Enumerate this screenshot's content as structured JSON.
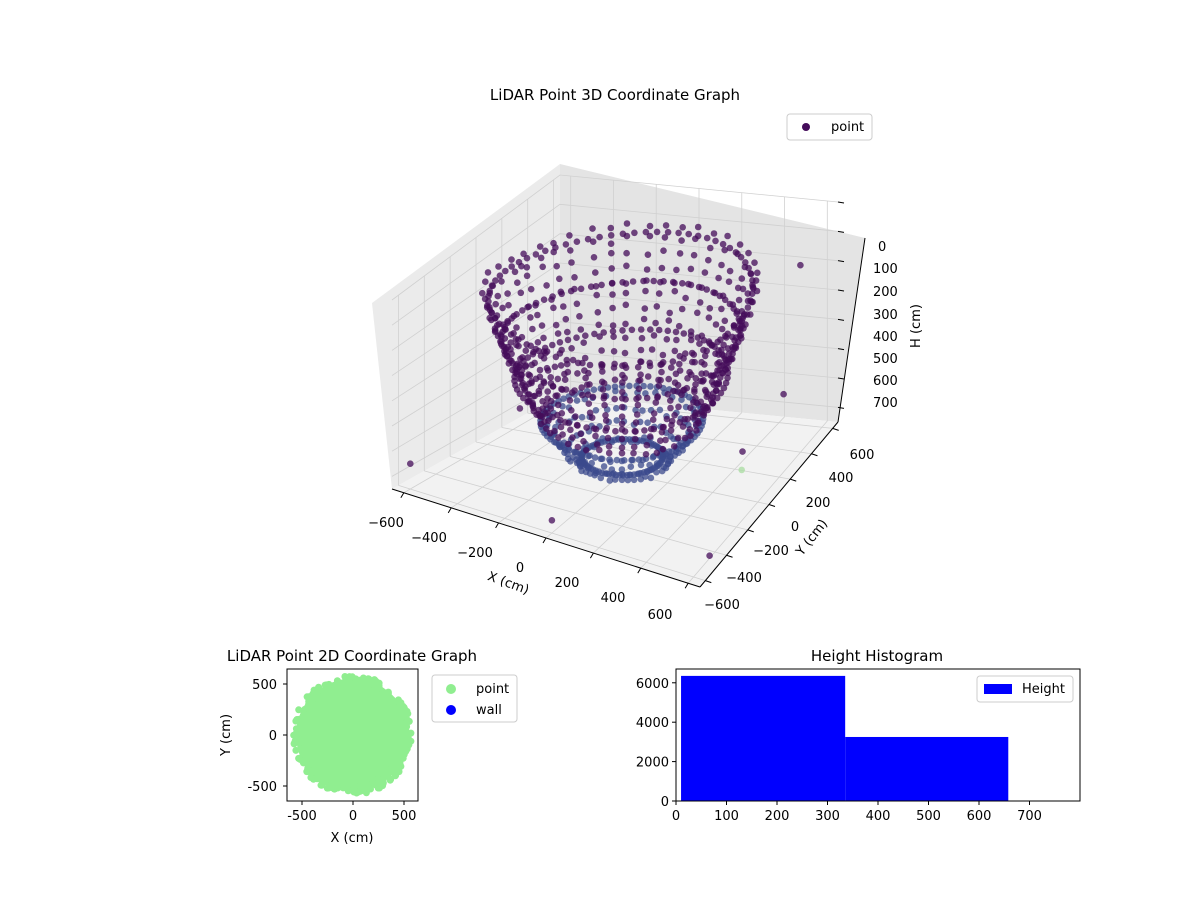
{
  "chart_data": [
    {
      "type": "scatter",
      "subtype": "3d",
      "title": "LiDAR Point 3D Coordinate Graph",
      "xlabel": "X (cm)",
      "ylabel": "Y (cm)",
      "zlabel": "H (cm)",
      "xlim": [
        -650,
        650
      ],
      "ylim": [
        -650,
        650
      ],
      "zlim": [
        750,
        0
      ],
      "x_ticks": [
        "−600",
        "−400",
        "−200",
        "0",
        "200",
        "400",
        "600"
      ],
      "y_ticks": [
        "−600",
        "−400",
        "−200",
        "0",
        "200",
        "400",
        "600"
      ],
      "z_ticks": [
        "0",
        "100",
        "200",
        "300",
        "400",
        "500",
        "600",
        "700"
      ],
      "legend": [
        "point"
      ],
      "legend_position": "top-right",
      "grid": true,
      "z_inverted": true,
      "colors": {
        "point": "#440c5a",
        "point_low": "#3b4a8c",
        "outlier_light": "#a8dca0"
      },
      "structure": {
        "rings": [
          {
            "radius": 520,
            "height": 100
          },
          {
            "radius": 470,
            "height": 250
          },
          {
            "radius": 420,
            "height": 400
          },
          {
            "radius": 320,
            "height": 560
          },
          {
            "radius": 160,
            "height": 690
          }
        ],
        "scan_lines": 44,
        "outliers": [
          {
            "x": -600,
            "y": -600,
            "h": 650
          },
          {
            "x": -620,
            "y": 300,
            "h": 200
          },
          {
            "x": 550,
            "y": 500,
            "h": 150
          },
          {
            "x": 620,
            "y": 200,
            "h": 450
          },
          {
            "x": 580,
            "y": -100,
            "h": 520
          },
          {
            "x": 0,
            "y": -600,
            "h": 700
          },
          {
            "x": 600,
            "y": -450,
            "h": 740
          },
          {
            "x": -400,
            "y": -100,
            "h": 550
          }
        ],
        "light_outlier": {
          "x": 600,
          "y": -150,
          "h": 560
        }
      }
    },
    {
      "type": "scatter",
      "title": "LiDAR Point 2D Coordinate Graph",
      "xlabel": "X (cm)",
      "ylabel": "Y (cm)",
      "xlim": [
        -650,
        650
      ],
      "ylim": [
        -650,
        650
      ],
      "x_ticks": [
        -500,
        0,
        500
      ],
      "y_ticks": [
        -500,
        0,
        500
      ],
      "legend": [
        "point",
        "wall"
      ],
      "legend_position": "outside-right",
      "series": [
        {
          "name": "point",
          "color": "#90ee90",
          "shape": "disc",
          "radius": 560,
          "center": [
            0,
            0
          ]
        },
        {
          "name": "wall",
          "color": "#0000ff"
        }
      ]
    },
    {
      "type": "bar",
      "subtype": "histogram",
      "title": "Height Histogram",
      "xlim": [
        0,
        800
      ],
      "ylim": [
        0,
        6700
      ],
      "x_ticks": [
        0,
        100,
        200,
        300,
        400,
        500,
        600,
        700
      ],
      "y_ticks": [
        0,
        2000,
        4000,
        6000
      ],
      "legend": [
        "Height"
      ],
      "legend_position": "top-right",
      "series": [
        {
          "name": "Height",
          "color": "#0000ff",
          "bins": [
            {
              "from": 10,
              "to": 335,
              "count": 6350
            },
            {
              "from": 335,
              "to": 658,
              "count": 3250
            }
          ]
        }
      ]
    }
  ]
}
